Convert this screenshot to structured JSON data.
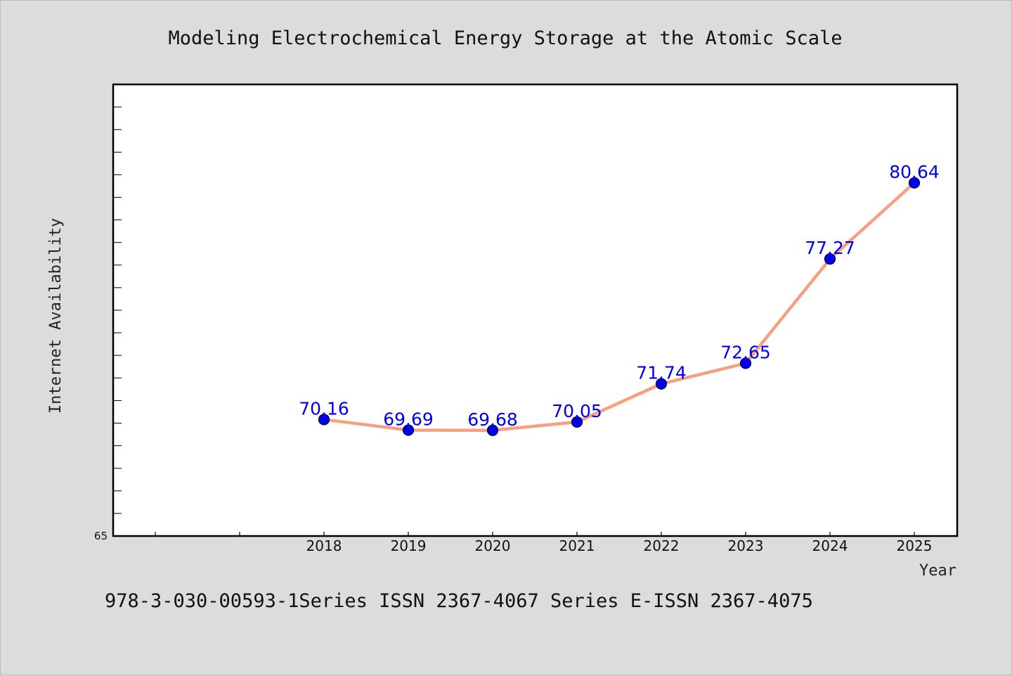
{
  "chart_data": {
    "type": "line",
    "title": "Modeling Electrochemical Energy Storage at the Atomic Scale",
    "xlabel": "Year",
    "ylabel": "Internet Availability",
    "x": [
      "2018",
      "2019",
      "2020",
      "2021",
      "2022",
      "2023",
      "2024",
      "2025"
    ],
    "x_extra_ticks_left": 2,
    "series": [
      {
        "values": [
          70.16,
          69.69,
          69.68,
          70.05,
          71.74,
          72.65,
          77.27,
          80.64
        ]
      }
    ],
    "value_labels": [
      "70.16",
      "69.69",
      "69.68",
      "70.05",
      "71.74",
      "72.65",
      "77.27",
      "80.64"
    ],
    "ylim": [
      65,
      85
    ],
    "y_tick_labels": [
      "65"
    ],
    "grid": false,
    "legend": "none",
    "colors": {
      "line": "#f5a07e",
      "marker": "#0000ee",
      "marker_stroke": "#000033",
      "label": "#0000ee",
      "plot_bg": "#ffffff",
      "page_bg": "#dcdcdc",
      "frame": "#000000"
    }
  },
  "footer": "978-3-030-00593-1Series ISSN 2367-4067 Series E-ISSN 2367-4075"
}
